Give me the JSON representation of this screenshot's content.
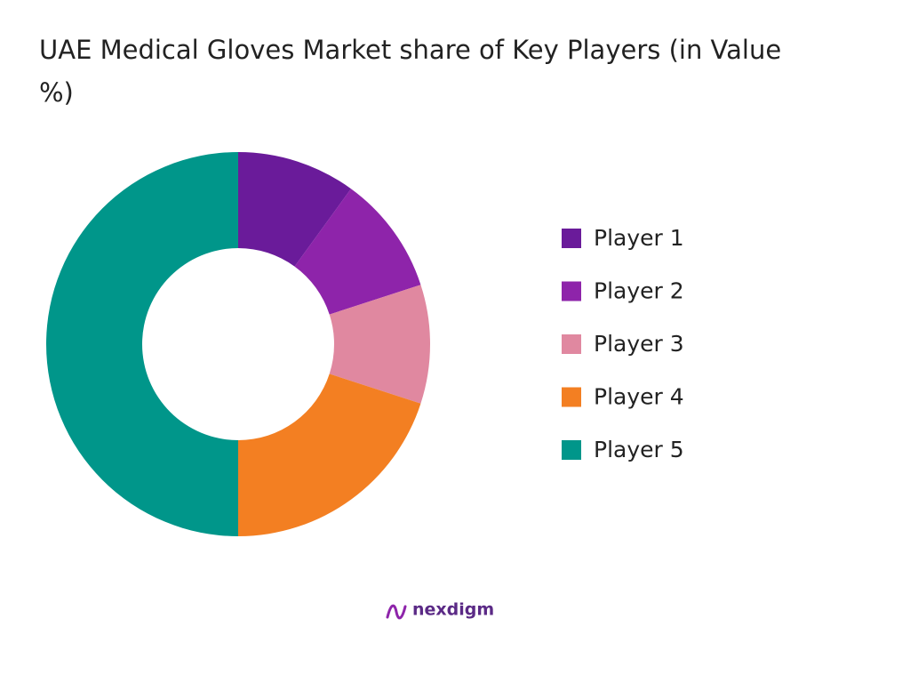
{
  "chart_data": {
    "type": "donut",
    "title": "UAE Medical Gloves Market share of Key Players (in Value %)",
    "categories": [
      "Player 1",
      "Player 2",
      "Player 3",
      "Player 4",
      "Player 5"
    ],
    "values": [
      10,
      10,
      10,
      20,
      50
    ],
    "colors": [
      "#6a1b9a",
      "#8e24aa",
      "#e088a0",
      "#f37f22",
      "#00968a"
    ],
    "legend": "right"
  },
  "logo": "nexdigm"
}
